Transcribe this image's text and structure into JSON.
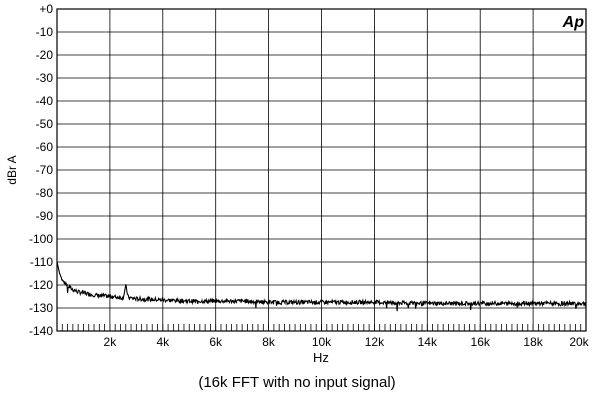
{
  "chart_data": {
    "type": "line",
    "title": "",
    "caption": "(16k FFT with no input signal)",
    "logo": "Ap",
    "xlabel": "Hz",
    "ylabel": "dBr A",
    "xlim": [
      0,
      20000
    ],
    "ylim": [
      -140,
      0
    ],
    "grid": true,
    "x_ticks": [
      2000,
      4000,
      6000,
      8000,
      10000,
      12000,
      14000,
      16000,
      18000,
      20000
    ],
    "x_tick_labels": [
      "2k",
      "4k",
      "6k",
      "8k",
      "10k",
      "12k",
      "14k",
      "16k",
      "18k",
      "20k"
    ],
    "y_ticks": [
      0,
      -10,
      -20,
      -30,
      -40,
      -50,
      -60,
      -70,
      -80,
      -90,
      -100,
      -110,
      -120,
      -130,
      -140
    ],
    "y_tick_labels": [
      "+0",
      "-10",
      "-20",
      "-30",
      "-40",
      "-50",
      "-60",
      "-70",
      "-80",
      "-90",
      "-100",
      "-110",
      "-120",
      "-130",
      "-140"
    ],
    "series": [
      {
        "color": "#000000",
        "x": [
          0,
          100,
          200,
          400,
          600,
          800,
          1000,
          1500,
          2000,
          2500,
          2600,
          2700,
          3000,
          4000,
          5000,
          6000,
          7000,
          8000,
          9000,
          10000,
          12000,
          14000,
          16000,
          18000,
          20000
        ],
        "y": [
          -110,
          -115,
          -118,
          -120.5,
          -122,
          -123,
          -123.5,
          -124.5,
          -125,
          -125.5,
          -120.5,
          -125.5,
          -126,
          -126.5,
          -127,
          -127,
          -127,
          -127.5,
          -127.5,
          -127.5,
          -127.5,
          -128,
          -128,
          -128,
          -128
        ]
      }
    ]
  }
}
